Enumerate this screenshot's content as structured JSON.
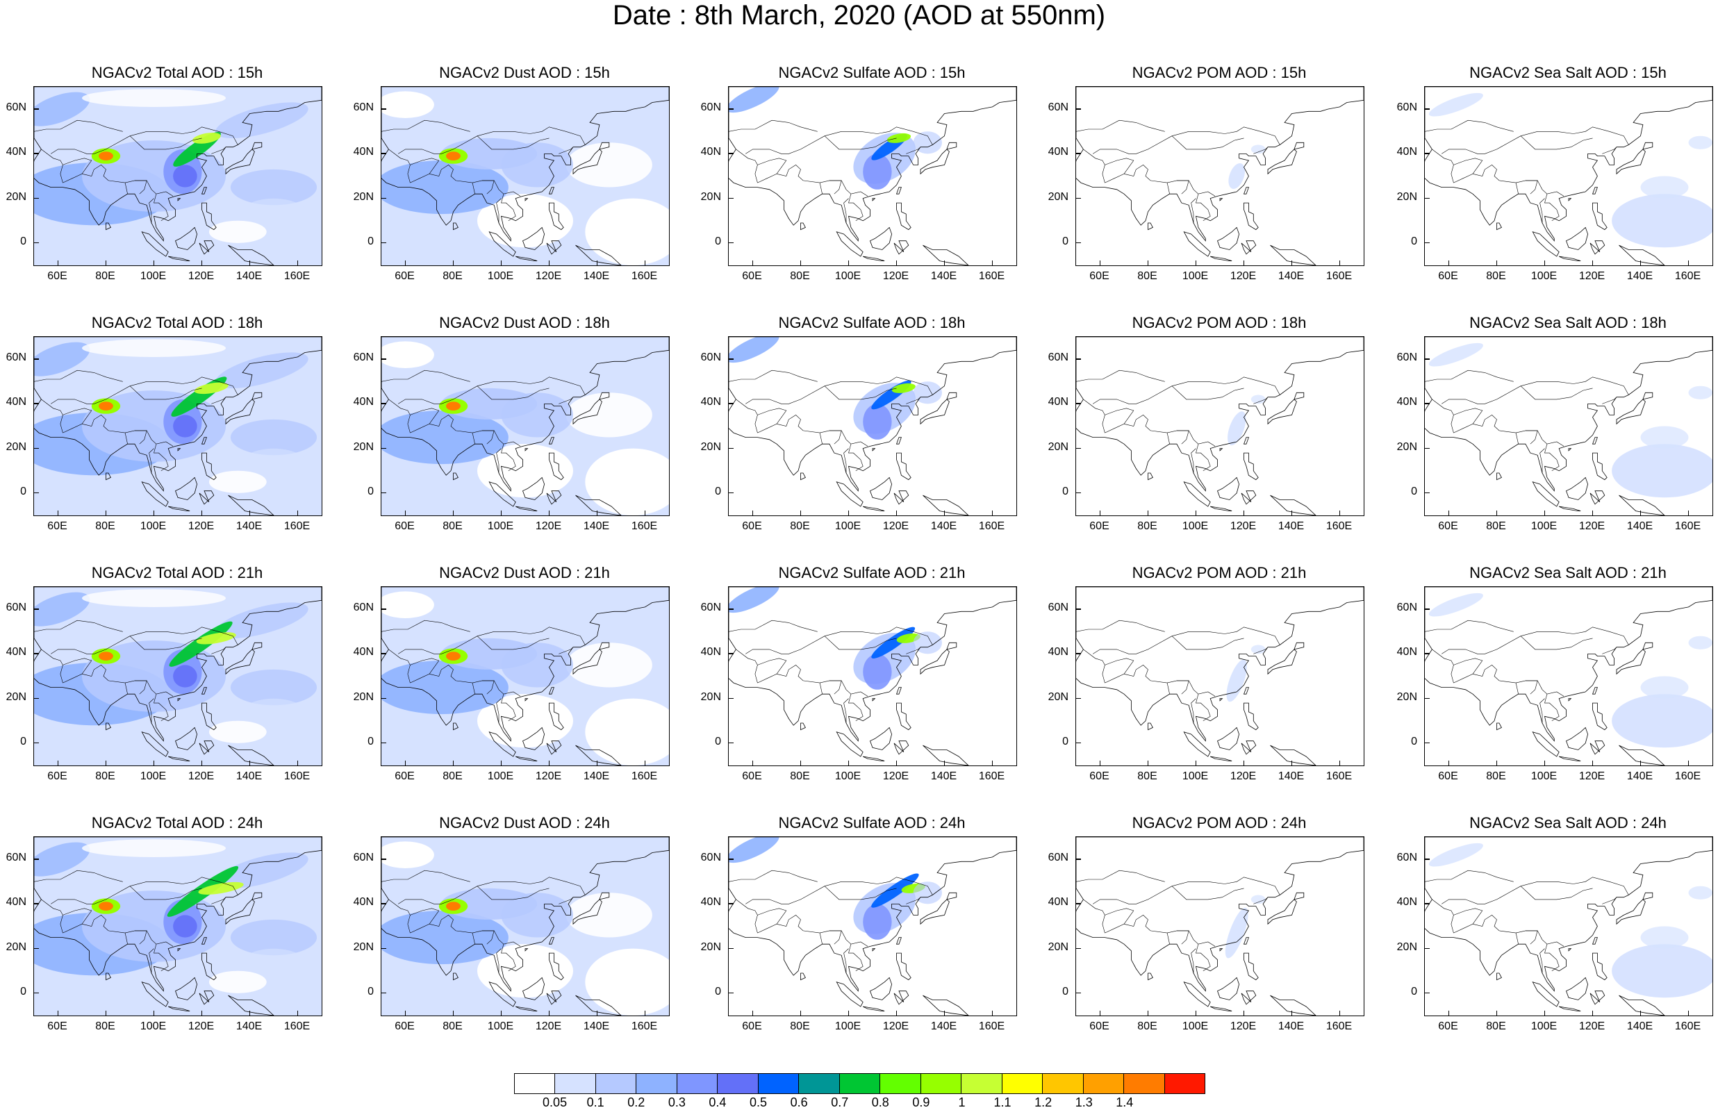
{
  "title": "Date : 8th March, 2020 (AOD at 550nm)",
  "x_ticks": [
    "60E",
    "80E",
    "100E",
    "120E",
    "140E",
    "160E"
  ],
  "y_ticks": [
    "60N",
    "40N",
    "20N",
    "0"
  ],
  "panels": [
    [
      "NGACv2 Total AOD : 15h",
      "NGACv2 Dust AOD : 15h",
      "NGACv2 Sulfate AOD : 15h",
      "NGACv2 POM AOD : 15h",
      "NGACv2 Sea Salt AOD : 15h"
    ],
    [
      "NGACv2 Total AOD : 18h",
      "NGACv2 Dust AOD : 18h",
      "NGACv2 Sulfate AOD : 18h",
      "NGACv2 POM AOD : 18h",
      "NGACv2 Sea Salt AOD : 18h"
    ],
    [
      "NGACv2 Total AOD : 21h",
      "NGACv2 Dust AOD : 21h",
      "NGACv2 Sulfate AOD : 21h",
      "NGACv2 POM AOD : 21h",
      "NGACv2 Sea Salt AOD : 21h"
    ],
    [
      "NGACv2 Total AOD : 24h",
      "NGACv2 Dust AOD : 24h",
      "NGACv2 Sulfate AOD : 24h",
      "NGACv2 POM AOD : 24h",
      "NGACv2 Sea Salt  AOD : 24h"
    ]
  ],
  "colorbar": {
    "labels": [
      "0.05",
      "0.1",
      "0.2",
      "0.3",
      "0.4",
      "0.5",
      "0.6",
      "0.7",
      "0.8",
      "0.9",
      "1",
      "1.1",
      "1.2",
      "1.3",
      "1.4"
    ],
    "colors": [
      "#ffffff",
      "#d6e2ff",
      "#b5c9ff",
      "#8eb2ff",
      "#7f96ff",
      "#6370f8",
      "#0063ff",
      "#009696",
      "#00c633",
      "#63ff00",
      "#96ff00",
      "#c6ff33",
      "#ffff00",
      "#ffc600",
      "#ffa000",
      "#ff7c00",
      "#ff1900"
    ]
  }
}
